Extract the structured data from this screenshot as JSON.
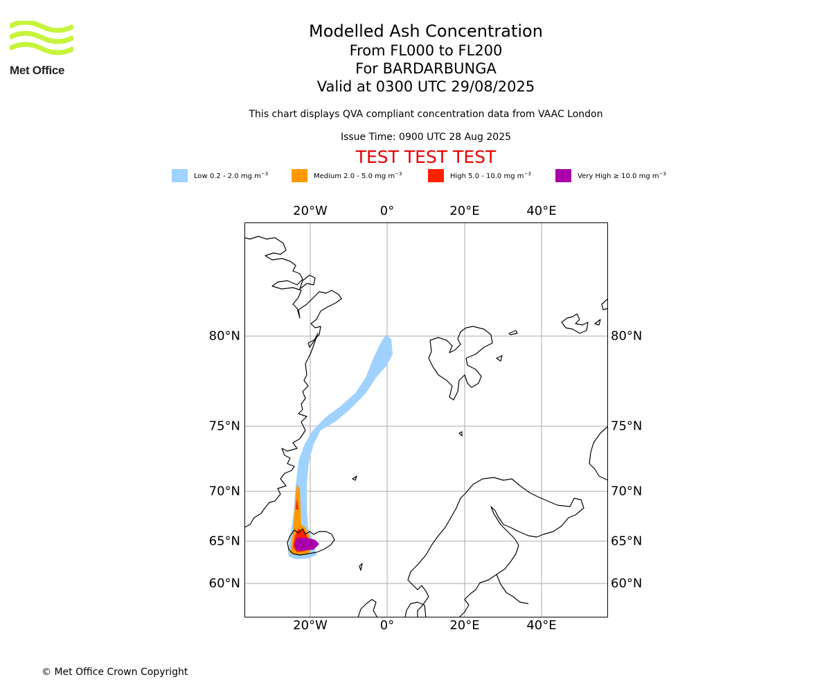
{
  "logo": {
    "text": "Met Office",
    "icon": "met-office-wave-logo",
    "color": "#c6f43b"
  },
  "titles": {
    "main": "Modelled Ash Concentration",
    "level": "From FL000 to FL200",
    "volcano": "For BARDARBUNGA",
    "valid": "Valid at 0300 UTC 29/08/2025"
  },
  "subtitle": "This chart displays QVA compliant concentration data from VAAC London",
  "issue_time": "Issue Time: 0900 UTC 28 Aug 2025",
  "test_banner": "TEST TEST TEST",
  "legend": [
    {
      "label": "Low 0.2 - 2.0 mg m",
      "color": "#a0d2ff"
    },
    {
      "label": "Medium 2.0 - 5.0 mg m",
      "color": "#ff9900"
    },
    {
      "label": "High 5.0 - 10.0 mg m",
      "color": "#ff2200"
    },
    {
      "label": "Very High  ≥  10.0 mg m",
      "color": "#aa00aa"
    }
  ],
  "legend_unit_exponent": "−3",
  "map": {
    "lon_ticks": [
      "20°W",
      "0°",
      "20°E",
      "40°E"
    ],
    "lat_ticks": [
      "80°N",
      "75°N",
      "70°N",
      "65°N",
      "60°N"
    ],
    "grid_color": "#aaaaaa",
    "coast_color": "#000000"
  },
  "copyright": "© Met Office Crown Copyright"
}
